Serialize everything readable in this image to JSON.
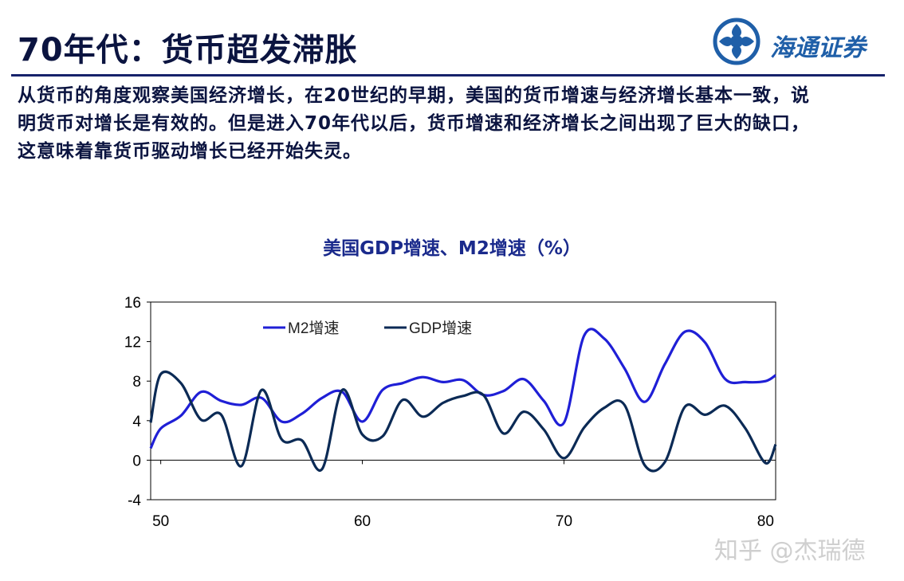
{
  "title": "70年代：货币超发滞胀",
  "logo": {
    "brand": "海通证券",
    "icon": "haitong-logo-icon",
    "color": "#1f5fa8"
  },
  "body_lines": [
    "从货币的角度观察美国经济增长，在20世纪的早期，美国的货币增速与经济增长基本一致，说",
    "明货币对增长是有效的。但是进入70年代以后，货币增速和经济增长之间出现了巨大的缺口，",
    "这意味着靠货币驱动增长已经开始失灵。"
  ],
  "watermark": "知乎 @杰瑞德",
  "colors": {
    "text": "#0b1440",
    "rule": "#16226b",
    "m2": "#1f1fd6",
    "gdp": "#0b2a55"
  },
  "chart_data": {
    "type": "line",
    "title": "美国GDP增速、M2增速（%）",
    "xlim": [
      49.5,
      80.5
    ],
    "ylim": [
      -4,
      16
    ],
    "xticks": [
      50,
      60,
      70,
      80
    ],
    "yticks": [
      16,
      12,
      8,
      4,
      0,
      -4
    ],
    "grid": false,
    "legend": "top-left",
    "series": [
      {
        "name": "M2增速",
        "color": "#1f1fd6",
        "x": [
          49.5,
          50,
          51,
          52,
          53,
          54,
          55,
          56,
          57,
          58,
          59,
          60,
          61,
          62,
          63,
          64,
          65,
          66,
          67,
          68,
          69,
          70,
          71,
          72,
          73,
          74,
          75,
          76,
          77,
          78,
          79,
          80,
          80.5
        ],
        "y": [
          1.2,
          3.2,
          4.5,
          6.9,
          6.0,
          5.6,
          6.3,
          3.9,
          4.7,
          6.3,
          6.9,
          3.9,
          7.1,
          7.8,
          8.4,
          7.9,
          8.1,
          6.6,
          7.0,
          8.2,
          6.0,
          3.8,
          12.6,
          12.3,
          9.3,
          5.9,
          9.7,
          13.0,
          11.9,
          8.2,
          7.9,
          8.0,
          8.6
        ]
      },
      {
        "name": "GDP增速",
        "color": "#0b2a55",
        "x": [
          49.5,
          50,
          51,
          52,
          53,
          54,
          55,
          56,
          57,
          58,
          59,
          60,
          61,
          62,
          63,
          64,
          65,
          66,
          67,
          68,
          69,
          70,
          71,
          72,
          73,
          74,
          75,
          76,
          77,
          78,
          79,
          80,
          80.5
        ],
        "y": [
          3.8,
          8.7,
          7.8,
          4.1,
          4.6,
          -0.6,
          7.1,
          2.1,
          2.0,
          -0.9,
          7.1,
          2.6,
          2.4,
          6.1,
          4.4,
          5.8,
          6.5,
          6.6,
          2.7,
          4.9,
          3.1,
          0.2,
          3.3,
          5.3,
          5.6,
          -0.5,
          -0.2,
          5.4,
          4.6,
          5.5,
          3.2,
          -0.3,
          1.6
        ]
      }
    ]
  }
}
